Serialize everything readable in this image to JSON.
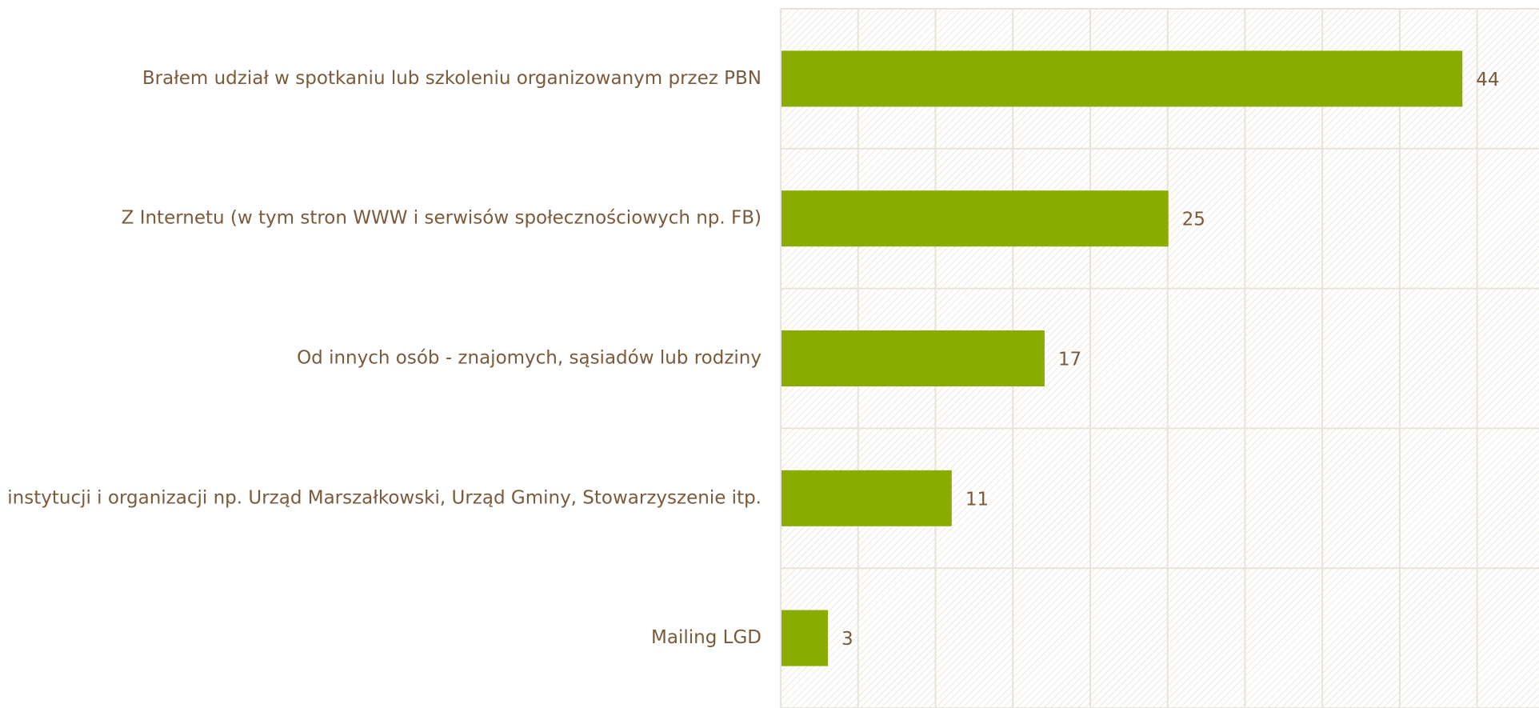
{
  "chart_data": {
    "type": "barh",
    "categories": [
      "Brałem udział w spotkaniu lub szkoleniu organizowanym przez PBN",
      "Z Internetu (w tym stron WWW i serwisów społecznościowych np. FB)",
      "Od innych osób - znajomych, sąsiadów lub rodziny",
      "Od instytucji i organizacji np. Urząd Marszałkowski, Urząd Gminy, Stowarzyszenie itp.",
      "Mailing LGD"
    ],
    "values": [
      44,
      25,
      17,
      11,
      3
    ],
    "color": "#8aab00",
    "xlim": [
      0,
      49
    ],
    "xticks": [
      0,
      5,
      10,
      15,
      20,
      25,
      30,
      35,
      40,
      45
    ],
    "grid": true
  }
}
